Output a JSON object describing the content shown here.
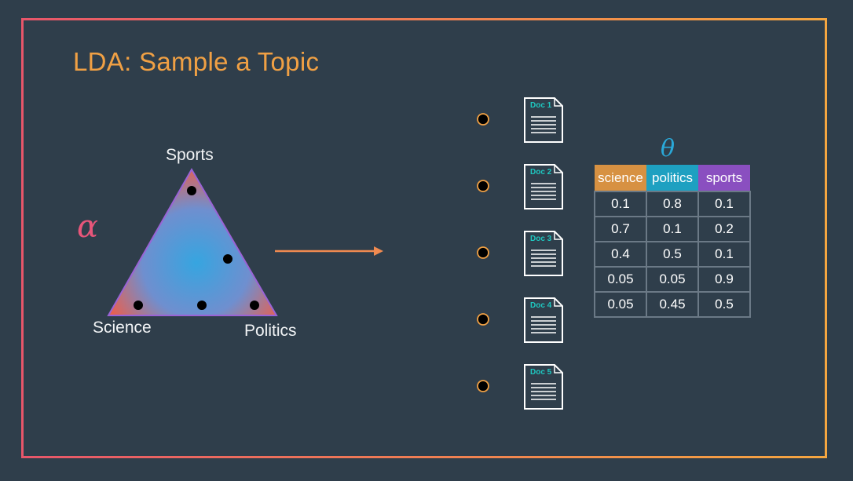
{
  "title": "LDA: Sample a Topic",
  "alpha_symbol": "α",
  "theta_symbol": "θ",
  "simplex": {
    "vertex_labels": {
      "top": "Sports",
      "left": "Science",
      "right": "Politics"
    }
  },
  "documents": [
    {
      "label": "Doc 1"
    },
    {
      "label": "Doc 2"
    },
    {
      "label": "Doc 3"
    },
    {
      "label": "Doc 4"
    },
    {
      "label": "Doc 5"
    }
  ],
  "theta_table": {
    "headers": [
      "science",
      "politics",
      "sports"
    ],
    "header_colors": [
      "#d79142",
      "#1ea0c1",
      "#8a4fc0"
    ],
    "rows": [
      [
        "0.1",
        "0.8",
        "0.1"
      ],
      [
        "0.7",
        "0.1",
        "0.2"
      ],
      [
        "0.4",
        "0.5",
        "0.1"
      ],
      [
        "0.05",
        "0.05",
        "0.9"
      ],
      [
        "0.05",
        "0.45",
        "0.5"
      ]
    ]
  },
  "colors": {
    "title": "#f0a044",
    "alpha": "#e8567a",
    "theta": "#2aa8d8",
    "arrow": "#f08a50",
    "bullet_outline": "#f0a044"
  }
}
